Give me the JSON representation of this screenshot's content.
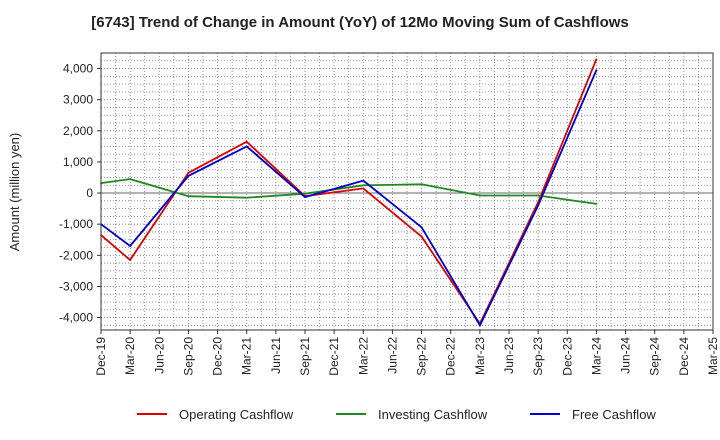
{
  "chart_data": {
    "type": "line",
    "title": "[6743]  Trend of Change in Amount (YoY) of 12Mo Moving Sum of Cashflows",
    "xlabel": "",
    "ylabel": "Amount (million yen)",
    "ylim": [
      -4400,
      4500
    ],
    "yticks": [
      -4000,
      -3000,
      -2000,
      -1000,
      0,
      1000,
      2000,
      3000,
      4000
    ],
    "ytick_labels": [
      "-4,000",
      "-3,000",
      "-2,000",
      "-1,000",
      "0",
      "1,000",
      "2,000",
      "3,000",
      "4,000"
    ],
    "grid": true,
    "legend_position": "bottom",
    "categories": [
      "Dec-19",
      "Mar-20",
      "Jun-20",
      "Sep-20",
      "Dec-20",
      "Mar-21",
      "Jun-21",
      "Sep-21",
      "Dec-21",
      "Mar-22",
      "Jun-22",
      "Sep-22",
      "Dec-22",
      "Mar-23",
      "Jun-23",
      "Sep-23",
      "Dec-23",
      "Mar-24",
      "Jun-24",
      "Sep-24",
      "Dec-24",
      "Mar-25"
    ],
    "series": [
      {
        "name": "Operating Cashflow",
        "color": "#dd0000",
        "values": [
          -1350,
          -2150,
          null,
          650,
          null,
          1650,
          null,
          -100,
          null,
          150,
          null,
          -1400,
          null,
          -4200,
          null,
          -300,
          null,
          4300,
          null,
          null,
          null,
          null
        ]
      },
      {
        "name": "Investing Cashflow",
        "color": "#228822",
        "values": [
          320,
          450,
          null,
          -100,
          null,
          -150,
          null,
          -20,
          null,
          250,
          null,
          280,
          null,
          -80,
          null,
          -80,
          null,
          -350,
          null,
          null,
          null,
          null
        ]
      },
      {
        "name": "Free Cashflow",
        "color": "#0000cc",
        "values": [
          -1000,
          -1700,
          null,
          550,
          null,
          1500,
          null,
          -130,
          null,
          400,
          null,
          -1100,
          null,
          -4250,
          null,
          -400,
          null,
          3950,
          null,
          null,
          null,
          null
        ]
      }
    ]
  }
}
